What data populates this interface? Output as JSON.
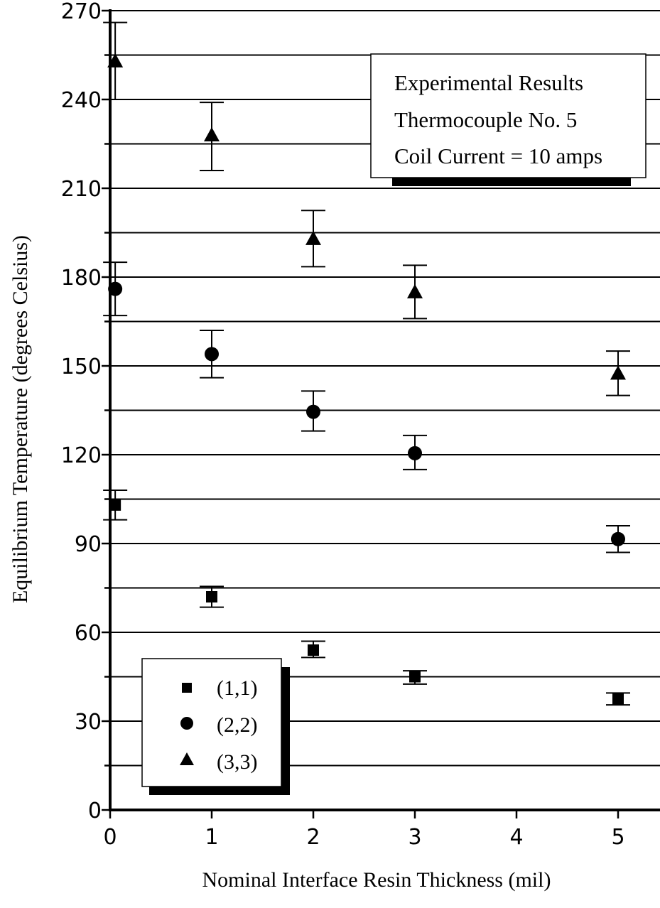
{
  "chart_data": {
    "type": "scatter",
    "xlabel": "Nominal Interface Resin Thickness (mil)",
    "ylabel": "Equilibrium Temperature (degrees Celsius)",
    "xlim": [
      0,
      5.4
    ],
    "ylim": [
      0,
      270
    ],
    "x_ticks": [
      "0",
      "1",
      "2",
      "3",
      "4",
      "5"
    ],
    "y_ticks": [
      "0",
      "30",
      "60",
      "90",
      "120",
      "150",
      "180",
      "210",
      "240",
      "270"
    ],
    "grid": "horizontal",
    "annotation_box": {
      "lines": [
        "Experimental Results",
        "Thermocouple No. 5",
        "Coil Current = 10 amps"
      ],
      "placement": "top-right"
    },
    "legend_placement": "bottom-left",
    "series": [
      {
        "name": "(1,1)",
        "marker": "square",
        "color": "#000000",
        "points": [
          {
            "x": 0.05,
            "y": 103,
            "lo": 98,
            "hi": 108
          },
          {
            "x": 1,
            "y": 72,
            "lo": 68.5,
            "hi": 75.5
          },
          {
            "x": 2,
            "y": 54,
            "lo": 51.5,
            "hi": 57
          },
          {
            "x": 3,
            "y": 45,
            "lo": 42.5,
            "hi": 47
          },
          {
            "x": 5,
            "y": 37.5,
            "lo": 35.5,
            "hi": 39.5
          }
        ]
      },
      {
        "name": "(2,2)",
        "marker": "circle",
        "color": "#000000",
        "points": [
          {
            "x": 0.05,
            "y": 176,
            "lo": 167,
            "hi": 185
          },
          {
            "x": 1,
            "y": 154,
            "lo": 146,
            "hi": 162
          },
          {
            "x": 2,
            "y": 134.5,
            "lo": 128,
            "hi": 141.5
          },
          {
            "x": 3,
            "y": 120.5,
            "lo": 115,
            "hi": 126.5
          },
          {
            "x": 5,
            "y": 91.5,
            "lo": 87,
            "hi": 96
          }
        ]
      },
      {
        "name": "(3,3)",
        "marker": "triangle",
        "color": "#000000",
        "points": [
          {
            "x": 0.05,
            "y": 253,
            "lo": 240,
            "hi": 266
          },
          {
            "x": 1,
            "y": 228,
            "lo": 216,
            "hi": 239
          },
          {
            "x": 2,
            "y": 193,
            "lo": 183.5,
            "hi": 202.5
          },
          {
            "x": 3,
            "y": 175,
            "lo": 166,
            "hi": 184
          },
          {
            "x": 5,
            "y": 147.5,
            "lo": 140,
            "hi": 155
          }
        ]
      }
    ]
  }
}
